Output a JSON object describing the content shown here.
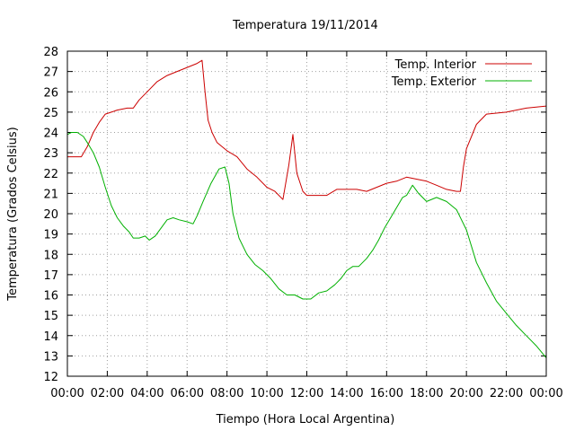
{
  "chart_data": {
    "type": "line",
    "title": "Temperatura 19/11/2014",
    "xlabel": "Tiempo (Hora Local Argentina)",
    "ylabel": "Temperatura (Grados Celsius)",
    "xlim": [
      "00:00",
      "24:00"
    ],
    "ylim": [
      12,
      28
    ],
    "x_ticks": [
      "00:00",
      "02:00",
      "04:00",
      "06:00",
      "08:00",
      "10:00",
      "12:00",
      "14:00",
      "16:00",
      "18:00",
      "20:00",
      "22:00",
      "00:00"
    ],
    "y_ticks": [
      "12",
      "13",
      "14",
      "15",
      "16",
      "17",
      "18",
      "19",
      "20",
      "21",
      "22",
      "23",
      "24",
      "25",
      "26",
      "27",
      "28"
    ],
    "grid": true,
    "legend_position": "top-right",
    "x_unit": "hours",
    "series": [
      {
        "name": "Temp. Interior",
        "color": "#cc0000",
        "x": [
          0,
          0.7,
          1.0,
          1.3,
          1.6,
          1.9,
          2.2,
          2.5,
          3.0,
          3.3,
          3.6,
          4.0,
          4.5,
          5.0,
          5.5,
          6.0,
          6.5,
          6.75,
          6.9,
          7.05,
          7.25,
          7.5,
          8.0,
          8.5,
          9.0,
          9.5,
          10.0,
          10.4,
          10.8,
          11.1,
          11.3,
          11.5,
          11.8,
          12.0,
          12.5,
          13.0,
          13.5,
          14.0,
          14.5,
          15.0,
          15.5,
          16.0,
          16.5,
          17.0,
          17.5,
          18.0,
          18.5,
          19.0,
          19.5,
          19.7,
          19.85,
          20.0,
          20.5,
          21.0,
          22.0,
          23.0,
          24.0
        ],
        "values": [
          22.8,
          22.8,
          23.3,
          24.0,
          24.5,
          24.9,
          25.0,
          25.1,
          25.2,
          25.2,
          25.6,
          26.0,
          26.5,
          26.8,
          27.0,
          27.2,
          27.4,
          27.55,
          26.0,
          24.6,
          24.0,
          23.5,
          23.1,
          22.8,
          22.2,
          21.8,
          21.3,
          21.1,
          20.7,
          22.4,
          23.9,
          22.0,
          21.1,
          20.9,
          20.9,
          20.9,
          21.2,
          21.2,
          21.2,
          21.1,
          21.3,
          21.5,
          21.6,
          21.8,
          21.7,
          21.6,
          21.4,
          21.2,
          21.1,
          21.1,
          22.3,
          23.2,
          24.4,
          24.9,
          25.0,
          25.2,
          25.3
        ]
      },
      {
        "name": "Temp. Exterior",
        "color": "#00b000",
        "x": [
          0,
          0.2,
          0.5,
          0.8,
          1.0,
          1.3,
          1.6,
          1.9,
          2.2,
          2.5,
          2.8,
          3.1,
          3.3,
          3.6,
          3.9,
          4.1,
          4.4,
          4.7,
          5.0,
          5.3,
          5.6,
          6.0,
          6.3,
          6.5,
          6.8,
          7.2,
          7.6,
          7.9,
          8.1,
          8.3,
          8.6,
          9.0,
          9.4,
          9.8,
          10.2,
          10.6,
          11.0,
          11.4,
          11.8,
          12.2,
          12.6,
          13.0,
          13.4,
          13.7,
          14.0,
          14.3,
          14.6,
          15.0,
          15.3,
          15.6,
          15.9,
          16.2,
          16.5,
          16.8,
          17.0,
          17.3,
          17.6,
          18.0,
          18.5,
          19.0,
          19.5,
          20.0,
          20.5,
          21.0,
          21.5,
          22.0,
          22.5,
          23.0,
          23.5,
          24.0
        ],
        "values": [
          23.9,
          24.0,
          24.0,
          23.8,
          23.5,
          23.0,
          22.3,
          21.3,
          20.4,
          19.8,
          19.4,
          19.1,
          18.8,
          18.8,
          18.9,
          18.7,
          18.9,
          19.3,
          19.7,
          19.8,
          19.7,
          19.6,
          19.5,
          19.9,
          20.6,
          21.5,
          22.2,
          22.3,
          21.5,
          20.0,
          18.8,
          18.0,
          17.5,
          17.2,
          16.8,
          16.3,
          16.0,
          16.0,
          15.8,
          15.8,
          16.1,
          16.2,
          16.5,
          16.8,
          17.2,
          17.4,
          17.4,
          17.8,
          18.2,
          18.7,
          19.3,
          19.8,
          20.3,
          20.8,
          20.9,
          21.4,
          21.0,
          20.6,
          20.8,
          20.6,
          20.2,
          19.2,
          17.6,
          16.6,
          15.7,
          15.1,
          14.5,
          14.0,
          13.5,
          12.9
        ]
      }
    ]
  }
}
